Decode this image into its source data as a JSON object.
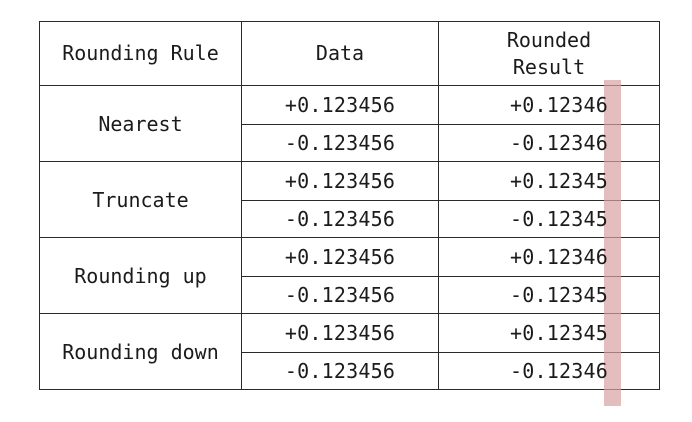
{
  "table": {
    "headers": {
      "rule": "Rounding Rule",
      "data": "Data",
      "result_line1": "Rounded",
      "result_line2": "Result"
    },
    "groups": [
      {
        "rule": "Nearest",
        "rows": [
          {
            "data": "+0.123456",
            "rounded_base": "+0.1234",
            "rounded_last": "6"
          },
          {
            "data": "-0.123456",
            "rounded_base": "-0.1234",
            "rounded_last": "6"
          }
        ]
      },
      {
        "rule": "Truncate",
        "rows": [
          {
            "data": "+0.123456",
            "rounded_base": "+0.1234",
            "rounded_last": "5"
          },
          {
            "data": "-0.123456",
            "rounded_base": "-0.1234",
            "rounded_last": "5"
          }
        ]
      },
      {
        "rule": "Rounding up",
        "rows": [
          {
            "data": "+0.123456",
            "rounded_base": "+0.1234",
            "rounded_last": "6"
          },
          {
            "data": "-0.123456",
            "rounded_base": "-0.1234",
            "rounded_last": "5"
          }
        ]
      },
      {
        "rule": "Rounding down",
        "rows": [
          {
            "data": "+0.123456",
            "rounded_base": "+0.1234",
            "rounded_last": "5"
          },
          {
            "data": "-0.123456",
            "rounded_base": "-0.1234",
            "rounded_last": "6"
          }
        ]
      }
    ]
  },
  "colors": {
    "highlight": "#d9a3a3",
    "border": "#2a2a2a",
    "text": "#1b1b1b"
  }
}
